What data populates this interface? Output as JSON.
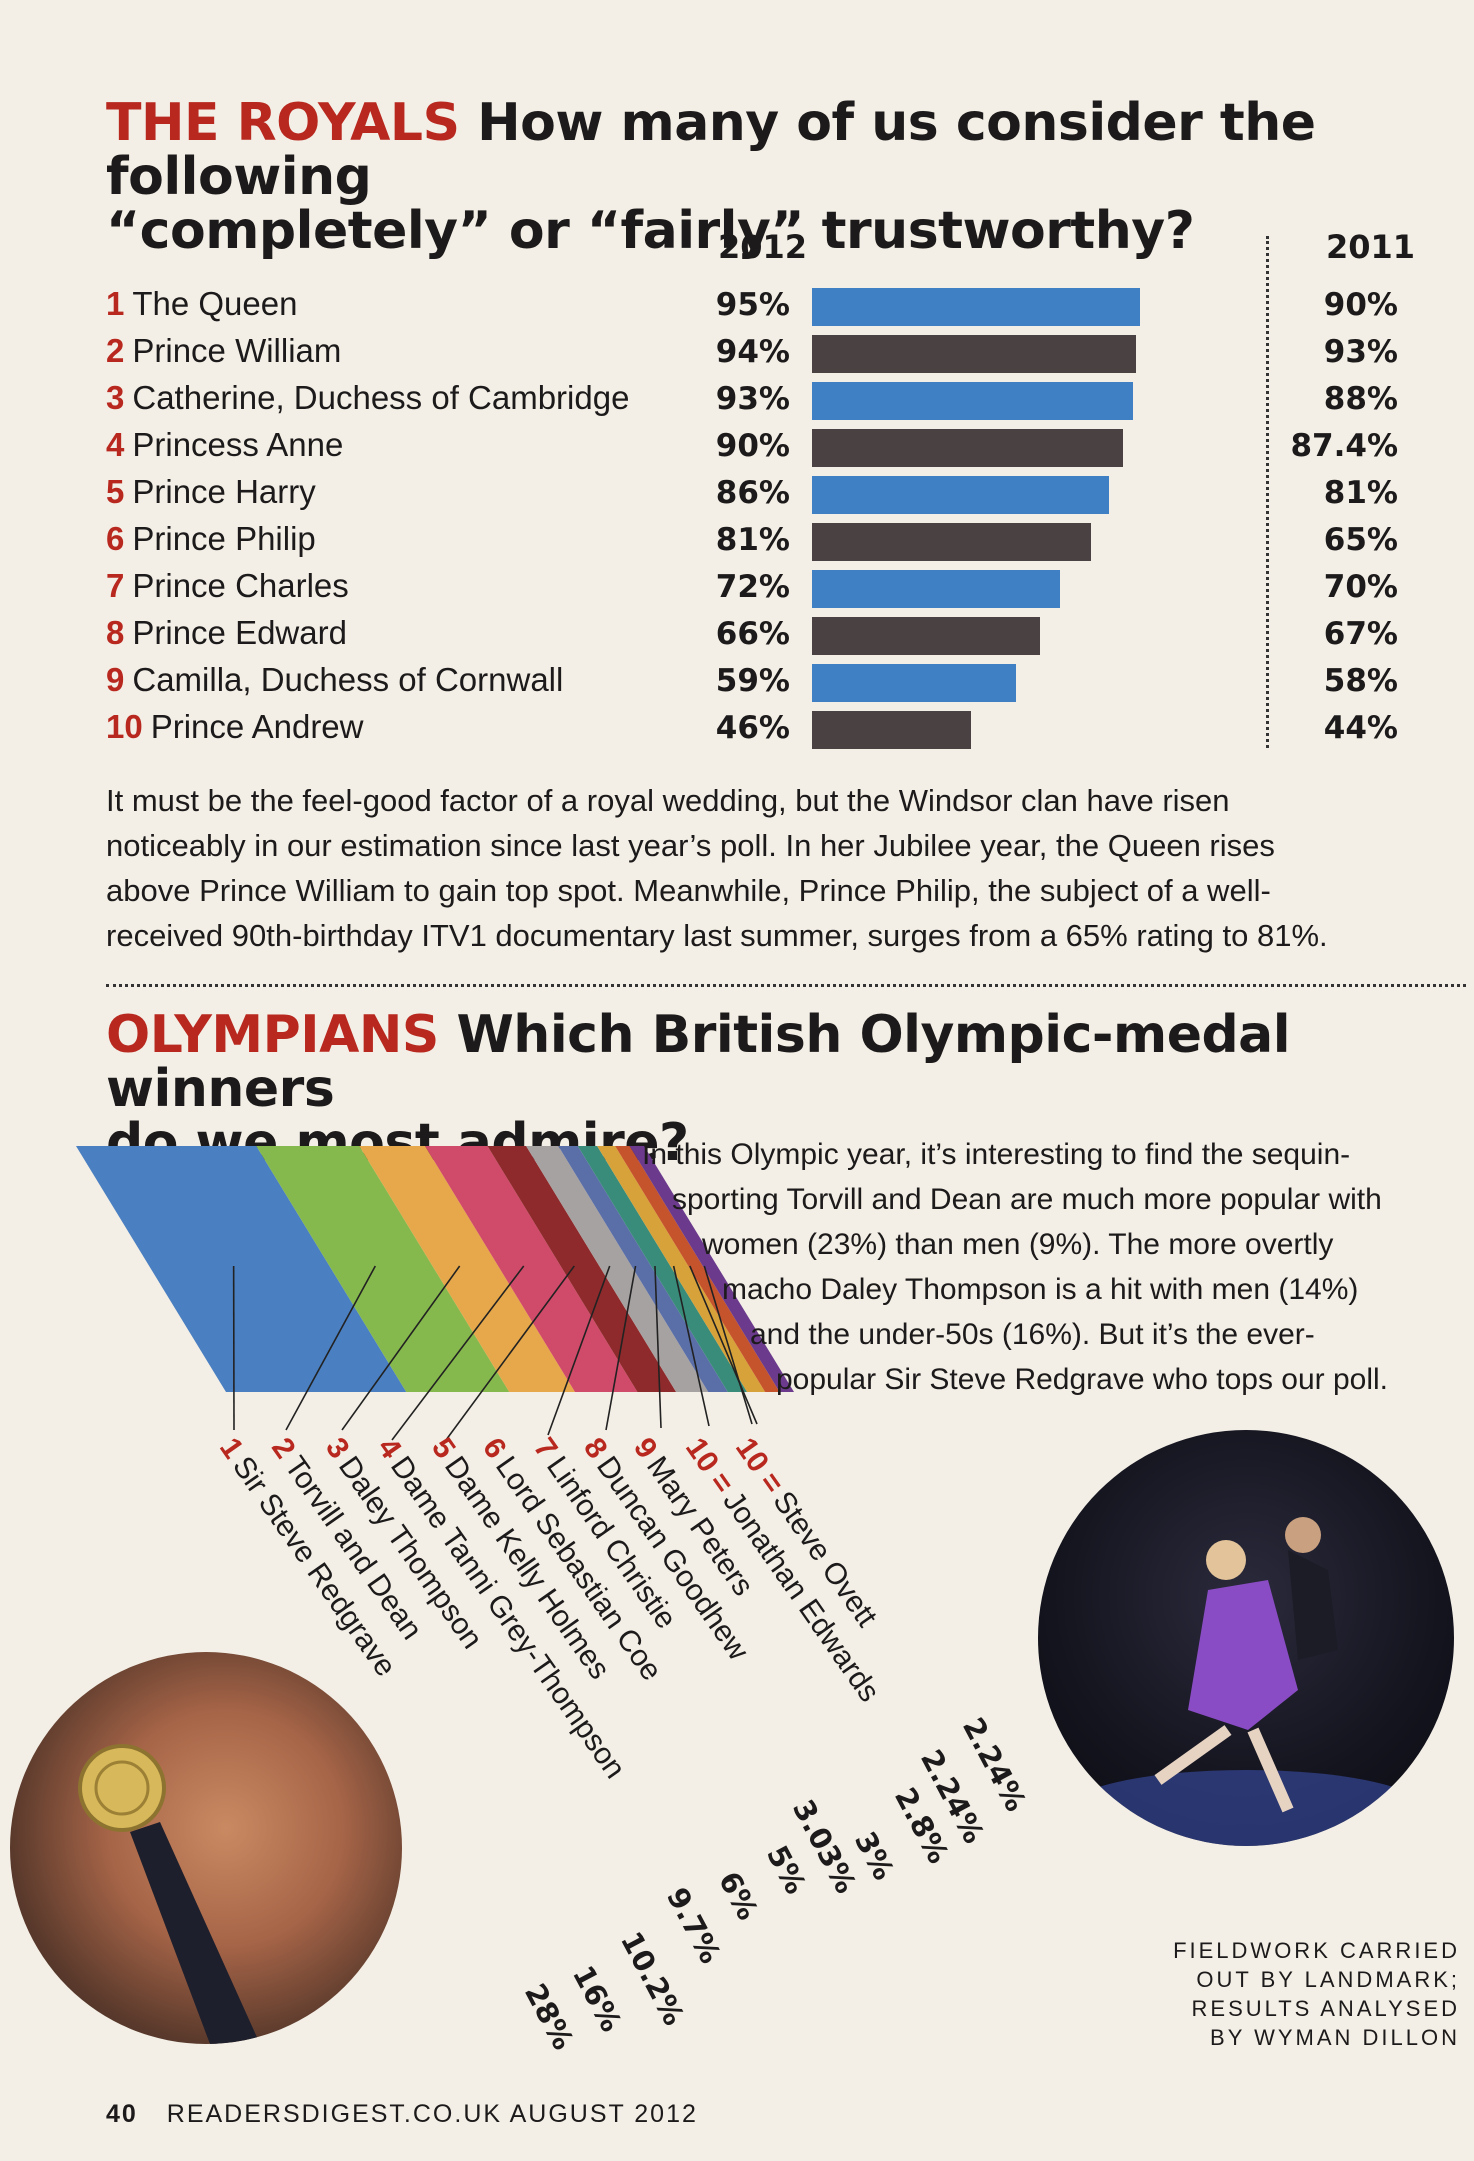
{
  "royals": {
    "kicker": "THE ROYALS",
    "question_line1": "How many of us consider the following",
    "question_line2": "“completely” or “fairly” trustworthy?",
    "col_2012": "2012",
    "col_2011": "2011",
    "paragraph": [
      "It must be the feel-good factor of a royal wedding, but the Windsor clan have risen",
      "noticeably in our estimation since last year’s poll. In her Jubilee year, the Queen rises",
      "above Prince William to gain top spot. Meanwhile, Prince Philip, the subject of a well-",
      "received 90th-birthday ITV1 documentary last summer, surges from a 65% rating to 81%."
    ]
  },
  "olympians": {
    "kicker": "OLYMPIANS",
    "question_line1": "Which British Olympic-medal winners",
    "question_line2": "do we most admire?",
    "paragraph": [
      "In this Olympic year, it’s interesting to find the sequin-",
      "sporting Torvill and Dean are much more popular with",
      "women (23%) than men (9%). The more overtly",
      "macho Daley Thompson is a hit with men (14%)",
      "and the under-50s (16%). But it’s the ever-",
      "popular Sir Steve Redgrave who tops our poll."
    ]
  },
  "credit": [
    "FIELDWORK CARRIED",
    "OUT BY LANDMARK;",
    "RESULTS ANALYSED",
    "BY WYMAN DILLON"
  ],
  "footer": {
    "page": "40",
    "text": "READERSDIGEST.CO.UK  AUGUST 2012"
  },
  "colors": {
    "accent": "#b8281f",
    "blue": "#3f7fc3",
    "dark": "#4a4242"
  },
  "chart_data": [
    {
      "type": "bar",
      "orientation": "horizontal",
      "categories": [
        "The Queen",
        "Prince William",
        "Catherine, Duchess of Cambridge",
        "Princess Anne",
        "Prince Harry",
        "Prince Philip",
        "Prince Charles",
        "Prince Edward",
        "Camilla, Duchess of Cornwall",
        "Prince Andrew"
      ],
      "ranks": [
        "1",
        "2",
        "3",
        "4",
        "5",
        "6",
        "7",
        "8",
        "9",
        "10"
      ],
      "series": [
        {
          "name": "2012",
          "values": [
            95,
            94,
            93,
            90,
            86,
            81,
            72,
            66,
            59,
            46
          ],
          "labels": [
            "95%",
            "94%",
            "93%",
            "90%",
            "86%",
            "81%",
            "72%",
            "66%",
            "59%",
            "46%"
          ]
        },
        {
          "name": "2011",
          "values": [
            90,
            93,
            88,
            87.4,
            81,
            65,
            70,
            67,
            58,
            44
          ],
          "labels": [
            "90%",
            "93%",
            "88%",
            "87.4%",
            "81%",
            "65%",
            "70%",
            "67%",
            "58%",
            "44%"
          ]
        }
      ],
      "xlim": [
        0,
        100
      ]
    },
    {
      "type": "bar",
      "orientation": "stacked-band",
      "ranks": [
        "1",
        "2",
        "3",
        "4",
        "5",
        "6",
        "7",
        "8",
        "9",
        "10 =",
        "10 ="
      ],
      "categories": [
        "Sir Steve Redgrave",
        "Torvill and Dean",
        "Daley Thompson",
        "Dame Tanni Grey-Thompson",
        "Dame Kelly Holmes",
        "Lord Sebastian Coe",
        "Linford Christie",
        "Duncan Goodhew",
        "Mary Peters",
        "Jonathan Edwards",
        "Steve Ovett"
      ],
      "values": [
        28,
        16,
        10.2,
        9.7,
        6,
        5,
        3.03,
        3,
        2.8,
        2.24,
        2.24
      ],
      "labels": [
        "28%",
        "16%",
        "10.2%",
        "9.7%",
        "6%",
        "5%",
        "3.03%",
        "3%",
        "2.8%",
        "2.24%",
        "2.24%"
      ],
      "colors": [
        "#4a7fc1",
        "#86b94d",
        "#e6a84a",
        "#d04a6a",
        "#8e2a2c",
        "#a7a2a2",
        "#5a6fa8",
        "#3a8c7a",
        "#d8a23a",
        "#c5542c",
        "#6b3a8c"
      ]
    }
  ]
}
